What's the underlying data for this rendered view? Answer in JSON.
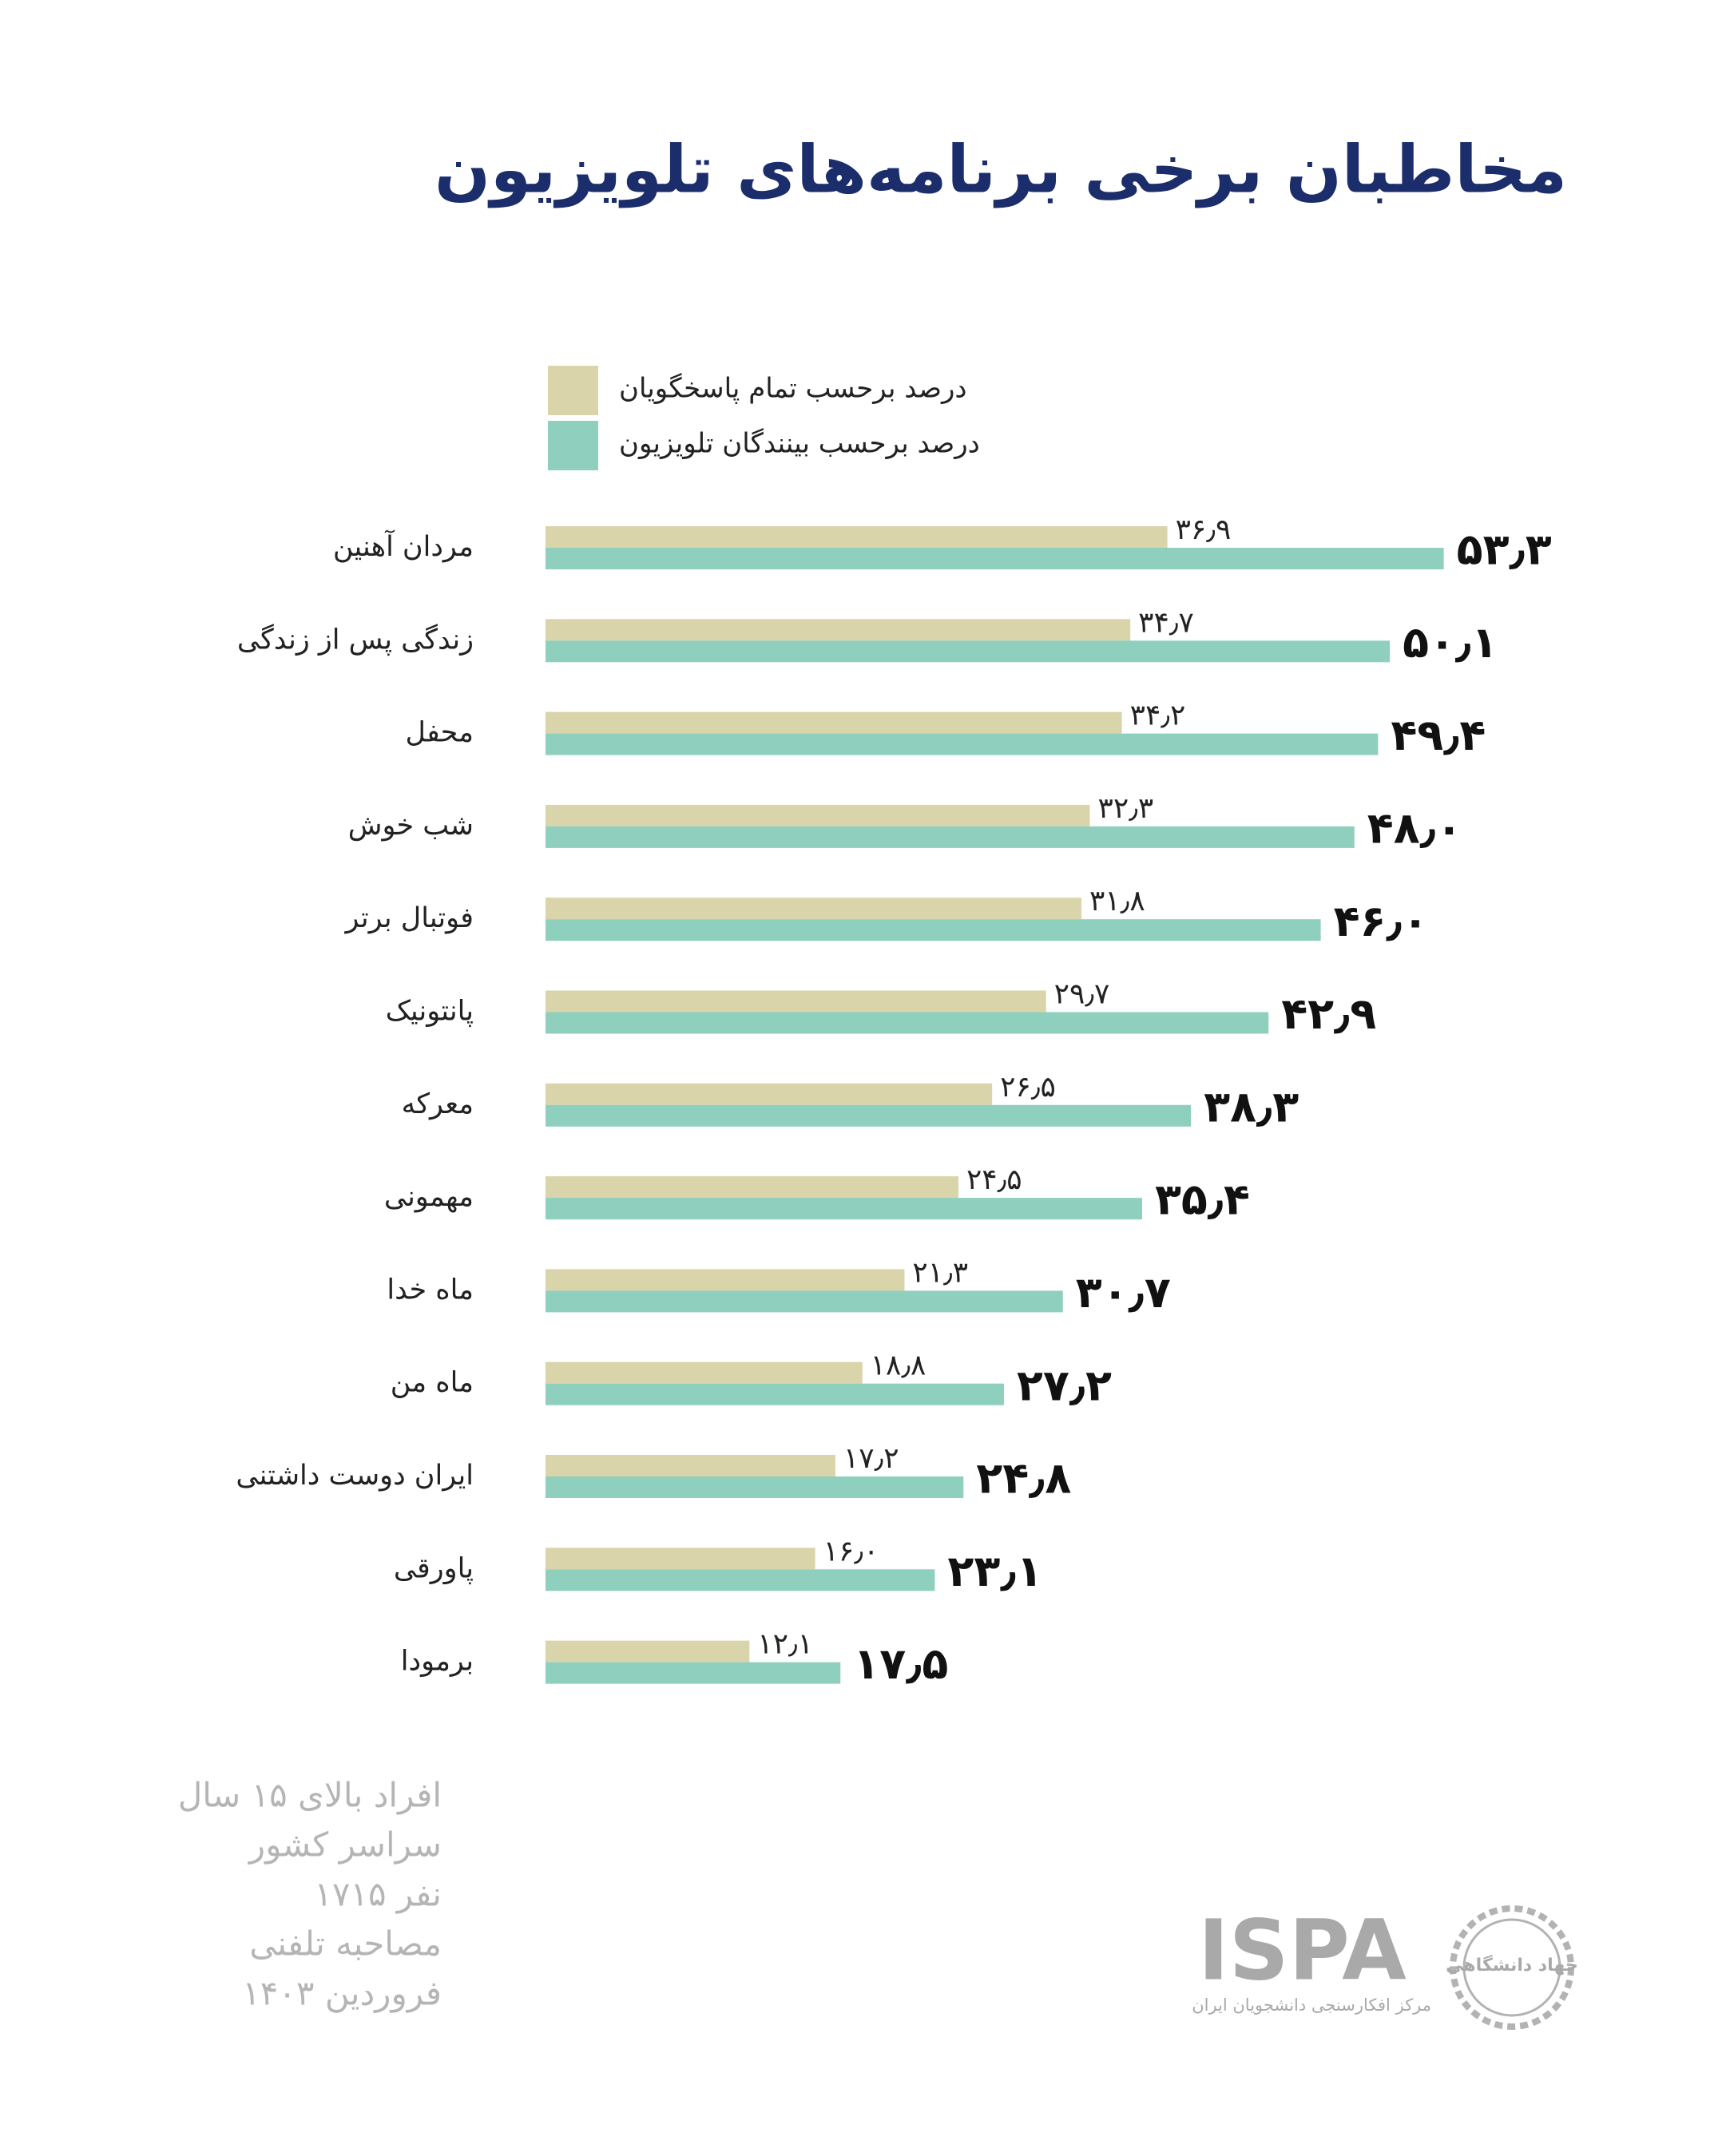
{
  "chart_data": {
    "type": "bar",
    "orientation": "horizontal",
    "title": "مخاطبان برخی برنامه‌های تلویزیون",
    "categories": [
      "مردان آهنین",
      "زندگی پس از زندگی",
      "محفل",
      "شب خوش",
      "فوتبال برتر",
      "پانتونیک",
      "معرکه",
      "مهمونی",
      "ماه خدا",
      "ماه من",
      "ایران دوست داشتنی",
      "پاورقی",
      "برمودا"
    ],
    "series": [
      {
        "name": "درصد برحسب تمام پاسخگویان",
        "color": "#d9d4a9",
        "values": [
          36.9,
          34.7,
          34.2,
          32.3,
          31.8,
          29.7,
          26.5,
          24.5,
          21.3,
          18.8,
          17.2,
          16.0,
          12.1
        ],
        "value_labels": [
          "۳۶٫۹",
          "۳۴٫۷",
          "۳۴٫۲",
          "۳۲٫۳",
          "۳۱٫۸",
          "۲۹٫۷",
          "۲۶٫۵",
          "۲۴٫۵",
          "۲۱٫۳",
          "۱۸٫۸",
          "۱۷٫۲",
          "۱۶٫۰",
          "۱۲٫۱"
        ]
      },
      {
        "name": "درصد برحسب بینندگان تلویزیون",
        "color": "#8ecfbd",
        "values": [
          53.3,
          50.1,
          49.4,
          48.0,
          46.0,
          42.9,
          38.3,
          35.4,
          30.7,
          27.2,
          24.8,
          23.1,
          17.5
        ],
        "value_labels": [
          "۵۳٫۳",
          "۵۰٫۱",
          "۴۹٫۴",
          "۴۸٫۰",
          "۴۶٫۰",
          "۴۲٫۹",
          "۳۸٫۳",
          "۳۵٫۴",
          "۳۰٫۷",
          "۲۷٫۲",
          "۲۴٫۸",
          "۲۳٫۱",
          "۱۷٫۵"
        ]
      }
    ],
    "notes": [
      "افراد بالای ۱۵ سال",
      "سراسر کشور",
      "۱۷۱۵ نفر",
      "مصاحبه تلفنی",
      "فروردین ۱۴۰۳"
    ],
    "logo": {
      "name": "ISPA",
      "subtitle": "مرکز افکارسنجی دانشجویان ایران",
      "emblem": "جهاد دانشگاهی"
    }
  }
}
